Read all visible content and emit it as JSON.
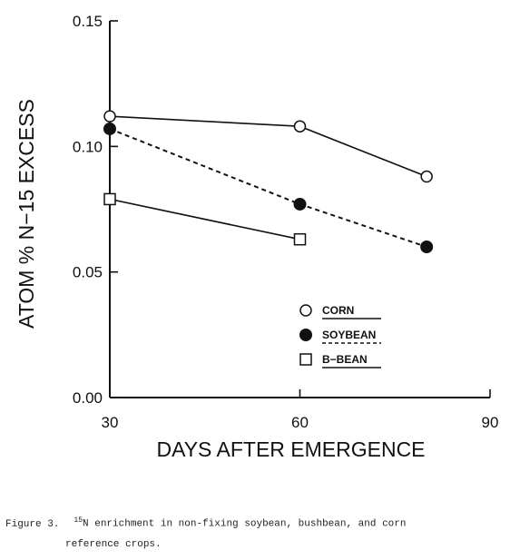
{
  "chart_data": {
    "type": "line",
    "xlabel": "DAYS AFTER EMERGENCE",
    "ylabel": "ATOM % N−15 EXCESS",
    "xlim": [
      30,
      90
    ],
    "ylim": [
      0.0,
      0.15
    ],
    "x_ticks": [
      30,
      60,
      90
    ],
    "y_ticks": [
      0.0,
      0.05,
      0.1,
      0.15
    ],
    "x_tick_labels": [
      "30",
      "60",
      "90"
    ],
    "y_tick_labels": [
      "0.00",
      "0.05",
      "0.10",
      "0.15"
    ],
    "grid": false,
    "legend_position": "center-right",
    "series": [
      {
        "name": "CORN",
        "marker": "open-circle",
        "line": "solid",
        "x": [
          30,
          60,
          80
        ],
        "y": [
          0.112,
          0.108,
          0.088
        ]
      },
      {
        "name": "SOYBEAN",
        "marker": "filled-circle",
        "line": "dashed",
        "x": [
          30,
          60,
          80
        ],
        "y": [
          0.107,
          0.077,
          0.06
        ]
      },
      {
        "name": "B−BEAN",
        "marker": "open-square",
        "line": "solid",
        "x": [
          30,
          60
        ],
        "y": [
          0.079,
          0.063
        ]
      }
    ]
  },
  "caption": {
    "figure_number": "Figure 3.",
    "superscript": "15",
    "line1": "N enrichment in non-fixing soybean, bushbean, and corn",
    "line2": "reference crops."
  }
}
